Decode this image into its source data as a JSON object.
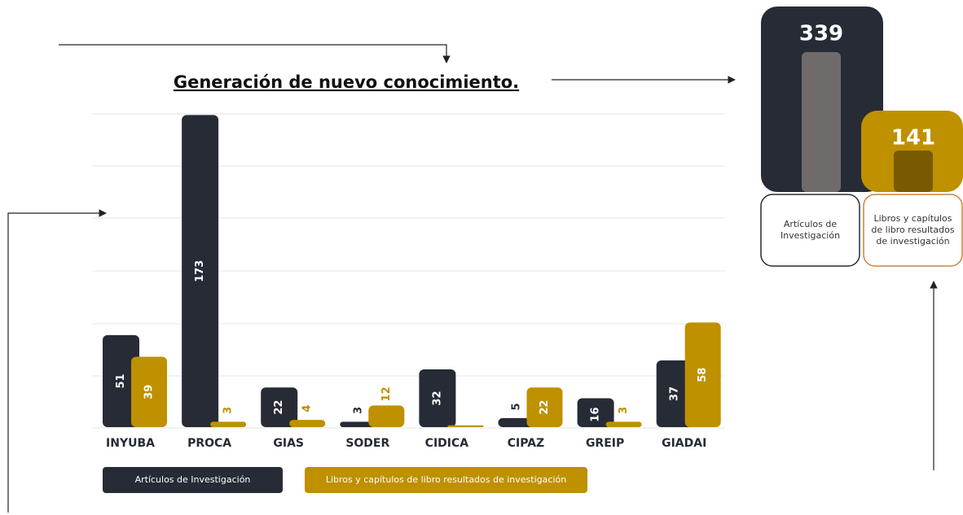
{
  "chart_data": {
    "type": "bar",
    "title": "Generación de nuevo conocimiento.",
    "categories": [
      "INYUBA",
      "PROCA",
      "GIAS",
      "SODER",
      "CIDICA",
      "CIPAZ",
      "GREIP",
      "GIADAI"
    ],
    "series": [
      {
        "name": "Artículos de Investigación",
        "color": "#262b36",
        "values": [
          51,
          173,
          22,
          3,
          32,
          5,
          16,
          37
        ]
      },
      {
        "name": "Libros y capítulos de libro resultados de investigación",
        "color": "#bf9000",
        "values": [
          39,
          3,
          4,
          12,
          1,
          22,
          3,
          58
        ],
        "value_labels": [
          "39",
          "3",
          "4",
          "12",
          null,
          "22",
          "3",
          "58"
        ]
      }
    ],
    "ylim": [
      0,
      175
    ]
  },
  "summary": [
    {
      "value": 339,
      "label": "Artículos de Investigación",
      "color": "#262b36",
      "inner": "#6f6b6b",
      "border": "#262b36"
    },
    {
      "value": 141,
      "label": "Libros y capítulos de libro resultados de investigación",
      "color": "#bf9000",
      "inner": "#7a5a00",
      "border": "#d0823a"
    }
  ]
}
